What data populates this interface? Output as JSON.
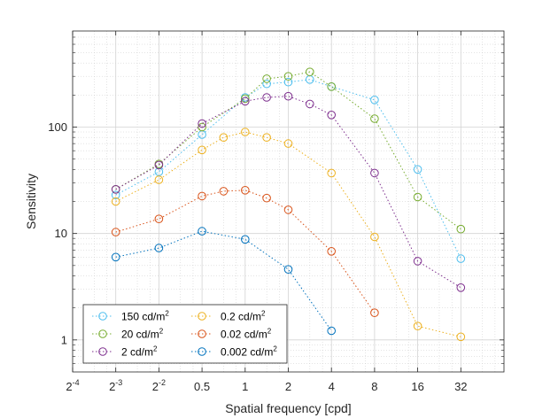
{
  "chart_data": {
    "type": "line",
    "xlabel": "Spatial frequency [cpd]",
    "ylabel": "Sensitivity",
    "x_scale": "log2",
    "y_scale": "log10",
    "xlim": [
      0.0625,
      64
    ],
    "ylim": [
      0.5,
      800
    ],
    "x_ticks": [
      {
        "value": 0.0625,
        "base": "2",
        "exp": "-4"
      },
      {
        "value": 0.125,
        "base": "2",
        "exp": "-3"
      },
      {
        "value": 0.25,
        "base": "2",
        "exp": "-2"
      },
      {
        "value": 0.5,
        "base": "0.5",
        "exp": ""
      },
      {
        "value": 1,
        "base": "1",
        "exp": ""
      },
      {
        "value": 2,
        "base": "2",
        "exp": ""
      },
      {
        "value": 4,
        "base": "4",
        "exp": ""
      },
      {
        "value": 8,
        "base": "8",
        "exp": ""
      },
      {
        "value": 16,
        "base": "16",
        "exp": ""
      },
      {
        "value": 32,
        "base": "32",
        "exp": ""
      }
    ],
    "y_ticks": [
      {
        "value": 1,
        "label": "1"
      },
      {
        "value": 10,
        "label": "10"
      },
      {
        "value": 100,
        "label": "100"
      }
    ],
    "grid": true,
    "minor_grid": true,
    "legend_position": "bottom-left",
    "series": [
      {
        "name": "150 cd/m",
        "sup": "2",
        "color": "#4DBEEE",
        "x": [
          0.125,
          0.25,
          0.5,
          1,
          1.414,
          2,
          2.828,
          4,
          8,
          16,
          32
        ],
        "y": [
          23,
          38,
          85,
          190,
          255,
          265,
          280,
          240,
          180,
          40,
          5.8
        ]
      },
      {
        "name": "20 cd/m",
        "sup": "2",
        "color": "#77AC30",
        "x": [
          0.125,
          0.25,
          0.5,
          1,
          1.414,
          2,
          2.828,
          4,
          8,
          16,
          32
        ],
        "y": [
          26,
          45,
          100,
          185,
          285,
          300,
          330,
          240,
          120,
          22,
          11
        ]
      },
      {
        "name": "2 cd/m",
        "sup": "2",
        "color": "#7E2F8E",
        "x": [
          0.125,
          0.25,
          0.5,
          1,
          1.414,
          2,
          2.828,
          4,
          8,
          16,
          32
        ],
        "y": [
          26,
          44,
          108,
          175,
          190,
          195,
          165,
          130,
          37,
          5.5,
          3.1
        ]
      },
      {
        "name": "0.2 cd/m",
        "sup": "2",
        "color": "#EDB120",
        "x": [
          0.125,
          0.25,
          0.5,
          0.707,
          1,
          1.414,
          2,
          4,
          8,
          16,
          32
        ],
        "y": [
          20,
          32,
          61,
          80,
          90,
          80,
          70,
          37,
          9.3,
          1.35,
          1.07
        ]
      },
      {
        "name": "0.02 cd/m",
        "sup": "2",
        "color": "#D95319",
        "x": [
          0.125,
          0.25,
          0.5,
          0.707,
          1,
          1.414,
          2,
          4,
          8
        ],
        "y": [
          10.3,
          13.7,
          22.5,
          25,
          25.5,
          21.5,
          16.7,
          6.8,
          1.8
        ]
      },
      {
        "name": "0.002 cd/m",
        "sup": "2",
        "color": "#0072BD",
        "x": [
          0.125,
          0.25,
          0.5,
          1,
          2,
          4
        ],
        "y": [
          6,
          7.3,
          10.5,
          8.8,
          4.6,
          1.22
        ]
      }
    ]
  }
}
